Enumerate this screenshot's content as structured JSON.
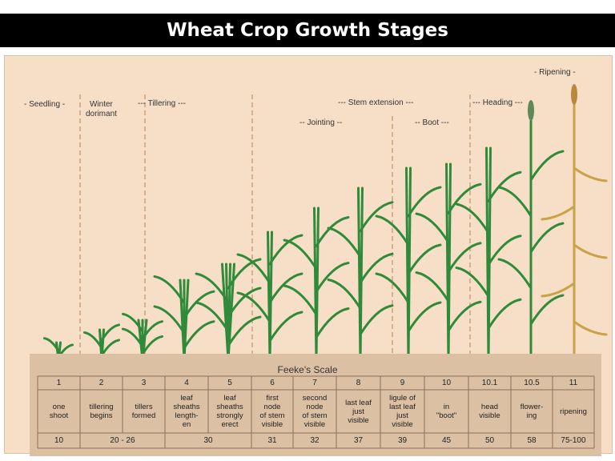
{
  "title": "Wheat Crop Growth Stages",
  "stage_labels": {
    "seedling": "- Seedling -",
    "winter": "Winter\ndorimant",
    "tillering": "--- Tillering ---",
    "stem_extension": "--- Stem extension ---",
    "jointing": "-- Jointing --",
    "boot": "-- Boot ---",
    "heading": "--- Heading ---",
    "ripening": "- Ripening -"
  },
  "scale_title": "Feeke's Scale",
  "feekes": [
    "1",
    "2",
    "3",
    "4",
    "5",
    "6",
    "7",
    "8",
    "9",
    "10",
    "10.1",
    "10.5",
    "11"
  ],
  "descriptions": [
    "one\nshoot",
    "tillering\nbegins",
    "tillers\nformed",
    "leaf\nsheaths\nlength-\nen",
    "leaf\nsheaths\nstrongly\nerect",
    "first\nnode\nof stem\nvisible",
    "second\nnode\nof stem\nvisible",
    "last leaf\njust\nvisible",
    "ligule of\nlast leaf\njust\nvisible",
    "in\n\"boot\"",
    "head\nvisible",
    "flower-\ning",
    "ripening"
  ],
  "zadoks": [
    "10",
    "20 - 26",
    "30",
    "31",
    "32",
    "37",
    "39",
    "45",
    "50",
    "58",
    "75-100"
  ],
  "colors": {
    "background": "#f7dfc7",
    "table": "#dcc0a3",
    "leaf": "#2f8a3a",
    "ripe": "#c9a24a"
  }
}
